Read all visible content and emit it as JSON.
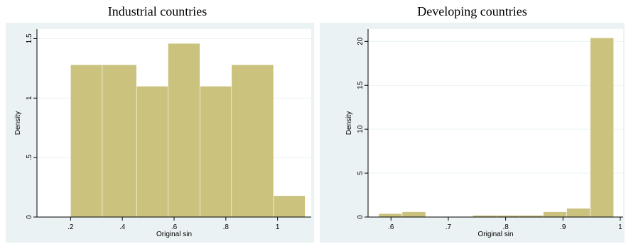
{
  "chart_data": [
    {
      "type": "bar",
      "title": "Industrial countries",
      "xlabel": "Original sin",
      "ylabel": "Density",
      "xlim": [
        0.07,
        1.13
      ],
      "ylim": [
        0,
        1.58
      ],
      "xticks": [
        0.2,
        0.4,
        0.6,
        0.8,
        1
      ],
      "xtick_labels": [
        ".2",
        ".4",
        ".6",
        ".8",
        "1"
      ],
      "yticks": [
        0,
        0.5,
        1,
        1.5
      ],
      "ytick_labels": [
        "0",
        ".5",
        "1",
        "1.5"
      ],
      "bins": [
        {
          "x0": 0.2,
          "x1": 0.3225,
          "value": 1.28
        },
        {
          "x0": 0.3225,
          "x1": 0.455,
          "value": 1.28
        },
        {
          "x0": 0.455,
          "x1": 0.5765,
          "value": 1.1
        },
        {
          "x0": 0.5765,
          "x1": 0.7,
          "value": 1.46
        },
        {
          "x0": 0.7,
          "x1": 0.822,
          "value": 1.1
        },
        {
          "x0": 0.822,
          "x1": 0.9845,
          "value": 1.28
        },
        {
          "x0": 0.9845,
          "x1": 1.1065,
          "value": 0.18
        }
      ],
      "grid": true,
      "colors": {
        "bar": "#cbc27d",
        "bar_edge": "#ffffff",
        "plot_bg": "#ffffff",
        "outer_bg": "#eaf2f3",
        "grid": "#eaf2f3"
      }
    },
    {
      "type": "bar",
      "title": "Developing countries",
      "xlabel": "Original sin",
      "ylabel": "Density",
      "xlim": [
        0.56,
        1.005
      ],
      "ylim": [
        0,
        21.4
      ],
      "xticks": [
        0.6,
        0.7,
        0.8,
        0.9,
        1
      ],
      "xtick_labels": [
        ".6",
        ".7",
        ".8",
        ".9",
        "1"
      ],
      "yticks": [
        0,
        5,
        10,
        15,
        20
      ],
      "ytick_labels": [
        "0",
        "5",
        "10",
        "15",
        "20"
      ],
      "bins": [
        {
          "x0": 0.5785,
          "x1": 0.6195,
          "value": 0.4
        },
        {
          "x0": 0.6195,
          "x1": 0.6605,
          "value": 0.6
        },
        {
          "x0": 0.6605,
          "x1": 0.7015,
          "value": 0.0
        },
        {
          "x0": 0.7015,
          "x1": 0.7425,
          "value": 0.0
        },
        {
          "x0": 0.7425,
          "x1": 0.7835,
          "value": 0.2
        },
        {
          "x0": 0.7835,
          "x1": 0.8245,
          "value": 0.2
        },
        {
          "x0": 0.8245,
          "x1": 0.8655,
          "value": 0.2
        },
        {
          "x0": 0.8655,
          "x1": 0.9065,
          "value": 0.6
        },
        {
          "x0": 0.9065,
          "x1": 0.9475,
          "value": 1.0
        },
        {
          "x0": 0.9475,
          "x1": 0.9885,
          "value": 20.4
        }
      ],
      "grid": true,
      "colors": {
        "bar": "#cbc27d",
        "bar_edge": "#ffffff",
        "plot_bg": "#ffffff",
        "outer_bg": "#eaf2f3",
        "grid": "#eaf2f3"
      }
    }
  ]
}
